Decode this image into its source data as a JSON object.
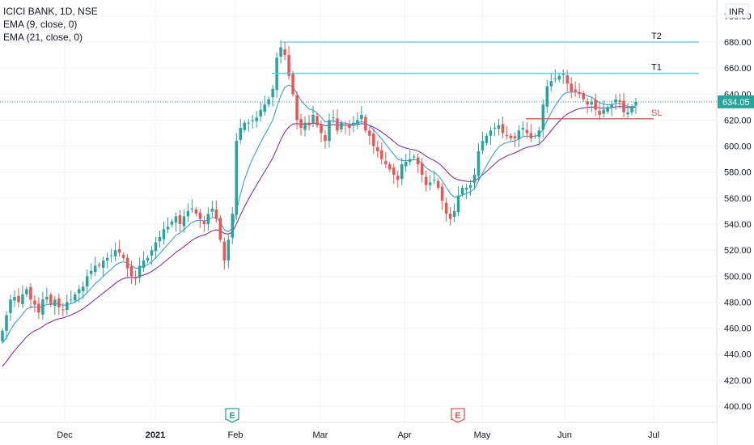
{
  "legend": {
    "symbol": "ICICI BANK, 1D, NSE",
    "ema9": "EMA (9, close, 0)",
    "ema21": "EMA (21, close, 0)"
  },
  "currency": "INR",
  "last_price_label": "634.05",
  "colors": {
    "up": "#26a69a",
    "down": "#ef5350",
    "ema9": "#2196f3",
    "ema21": "#7b1fa2",
    "target_line": "#4dd0e1",
    "sl_line": "#ef5350",
    "price_tag": "#26a69a"
  },
  "chart_data": {
    "type": "candlestick",
    "ylim": [
      388,
      702
    ],
    "y_ticks": [
      400,
      420,
      440,
      460,
      480,
      500,
      520,
      540,
      560,
      580,
      600,
      620,
      640,
      660,
      680,
      700
    ],
    "x_tick_labels": [
      "Dec",
      "2021",
      "Feb",
      "Mar",
      "Apr",
      "May",
      "Jun",
      "Jul"
    ],
    "horizontal_lines": [
      {
        "label": "T2",
        "value": 680,
        "color": "#4dd0e1"
      },
      {
        "label": "T1",
        "value": 656,
        "color": "#4dd0e1"
      },
      {
        "label": "SL",
        "value": 621,
        "color": "#ef5350"
      }
    ],
    "last_price": 634.05,
    "earnings_markers": [
      {
        "label": "E",
        "near": "Feb",
        "color": "#26a69a"
      },
      {
        "label": "E",
        "near": "Apr",
        "color": "#ef5350"
      }
    ],
    "closes": [
      458,
      470,
      482,
      484,
      480,
      486,
      490,
      482,
      478,
      472,
      482,
      484,
      478,
      482,
      476,
      474,
      480,
      482,
      486,
      490,
      492,
      500,
      504,
      508,
      508,
      512,
      514,
      516,
      520,
      518,
      514,
      506,
      500,
      498,
      508,
      512,
      514,
      520,
      526,
      530,
      536,
      538,
      542,
      546,
      540,
      546,
      550,
      552,
      548,
      544,
      540,
      548,
      552,
      544,
      528,
      512,
      528,
      548,
      604,
      614,
      618,
      618,
      620,
      622,
      628,
      632,
      636,
      644,
      668,
      676,
      670,
      654,
      640,
      620,
      614,
      618,
      616,
      624,
      616,
      610,
      604,
      620,
      622,
      612,
      618,
      616,
      614,
      618,
      620,
      624,
      612,
      608,
      600,
      596,
      590,
      586,
      582,
      578,
      574,
      586,
      588,
      590,
      592,
      586,
      578,
      570,
      572,
      574,
      568,
      558,
      548,
      544,
      550,
      562,
      568,
      568,
      570,
      578,
      596,
      604,
      608,
      612,
      614,
      616,
      610,
      608,
      606,
      606,
      612,
      614,
      610,
      606,
      608,
      612,
      632,
      646,
      650,
      652,
      654,
      656,
      648,
      642,
      642,
      640,
      636,
      632,
      634,
      628,
      624,
      628,
      630,
      632,
      636,
      634,
      626,
      626,
      630,
      634
    ]
  }
}
